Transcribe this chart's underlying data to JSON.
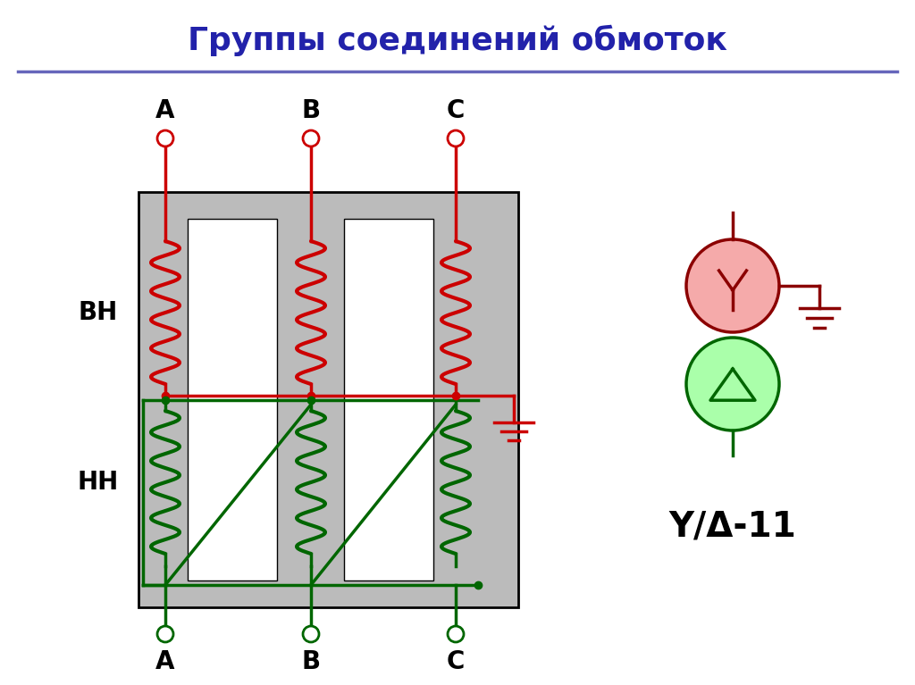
{
  "title": "Группы соединений обмоток",
  "title_color": "#2222AA",
  "title_fontsize": 26,
  "bg_color": "#FFFFFF",
  "red_color": "#CC0000",
  "green_color": "#006600",
  "dark_red": "#8B0000",
  "gray_core": "#BBBBBB",
  "label_VN": "ВН",
  "label_NN": "НН",
  "label_symbol": "Y/Δ-11",
  "line_width": 2.5
}
